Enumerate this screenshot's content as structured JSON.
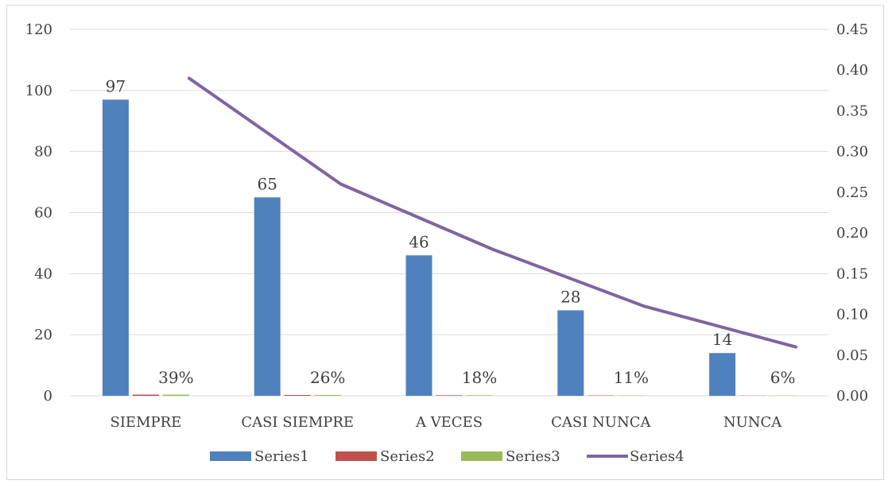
{
  "chart_data": {
    "type": "bar",
    "categories": [
      "SIEMPRE",
      "CASI SIEMPRE",
      "A VECES",
      "CASI NUNCA",
      "NUNCA"
    ],
    "series": [
      {
        "name": "Series1",
        "values": [
          97,
          65,
          46,
          28,
          14
        ],
        "axis": "left",
        "color": "#4f81bd",
        "data_labels": [
          "97",
          "65",
          "46",
          "28",
          "14"
        ]
      },
      {
        "name": "Series2",
        "values": [
          0.39,
          0.26,
          0.18,
          0.11,
          0.06
        ],
        "axis": "left",
        "color": "#c0504d"
      },
      {
        "name": "Series3",
        "values": [
          0.39,
          0.26,
          0.18,
          0.11,
          0.06
        ],
        "axis": "left",
        "color": "#9bbb59",
        "data_labels": [
          "39%",
          "26%",
          "18%",
          "11%",
          "6%"
        ]
      },
      {
        "name": "Series4",
        "type": "line",
        "values": [
          0.39,
          0.26,
          0.18,
          0.11,
          0.06
        ],
        "axis": "right",
        "color": "#8064a2"
      }
    ],
    "y_left": {
      "ylim": [
        0,
        120
      ],
      "ticks": [
        "0",
        "20",
        "40",
        "60",
        "80",
        "100",
        "120"
      ]
    },
    "y_right": {
      "ylim": [
        0,
        0.45
      ],
      "ticks": [
        "0.00",
        "0.05",
        "0.10",
        "0.15",
        "0.20",
        "0.25",
        "0.30",
        "0.35",
        "0.40",
        "0.45"
      ]
    },
    "grid": true,
    "legend": "bottom",
    "gridline_color": "#d9d9d9"
  }
}
